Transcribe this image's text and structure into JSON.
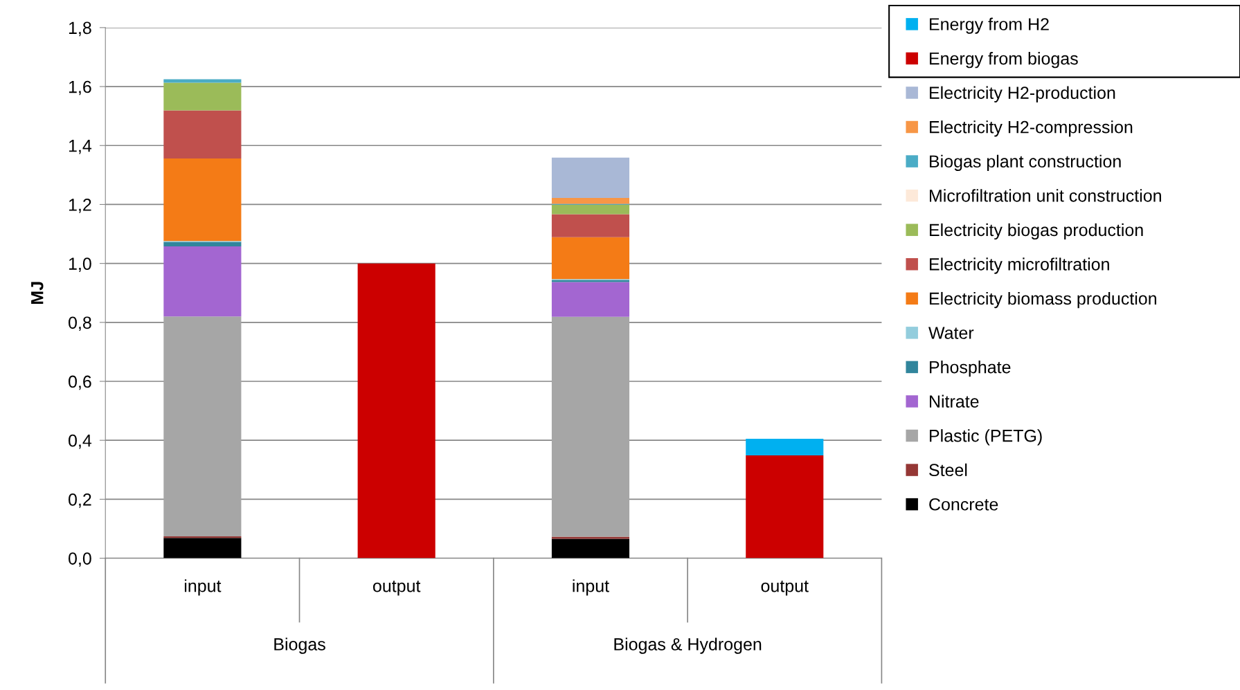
{
  "chart_data": {
    "type": "bar",
    "stacked": true,
    "ylabel": "MJ",
    "categories": [
      "input",
      "output",
      "input",
      "output"
    ],
    "series": [
      {
        "name": "Concrete",
        "color": "#000000",
        "values": [
          0.069,
          null,
          0.066,
          null
        ]
      },
      {
        "name": "Steel",
        "color": "#953735",
        "values": [
          0.005,
          null,
          0.007,
          null
        ]
      },
      {
        "name": "Plastic (PETG)",
        "color": "#a6a6a6",
        "values": [
          0.746,
          null,
          0.746,
          null
        ]
      },
      {
        "name": "Nitrate",
        "color": "#a366d1",
        "values": [
          0.238,
          null,
          0.118,
          null
        ]
      },
      {
        "name": "Phosphate",
        "color": "#31859c",
        "values": [
          0.015,
          null,
          0.007,
          null
        ]
      },
      {
        "name": "Water",
        "color": "#93cddd",
        "values": [
          0.003,
          null,
          0.003,
          null
        ]
      },
      {
        "name": "Electricity biomass production",
        "color": "#f47b16",
        "values": [
          0.28,
          null,
          0.142,
          null
        ]
      },
      {
        "name": "Electricity microfiltration",
        "color": "#c0504d",
        "values": [
          0.163,
          null,
          0.078,
          null
        ]
      },
      {
        "name": "Electricity biogas production",
        "color": "#9bbb59",
        "values": [
          0.094,
          null,
          0.032,
          null
        ]
      },
      {
        "name": "Microfiltration unit construction",
        "color": "#fde9d9",
        "values": [
          null,
          null,
          null,
          null
        ]
      },
      {
        "name": "Biogas plant construction",
        "color": "#4bacc6",
        "values": [
          0.012,
          null,
          0.003,
          null
        ]
      },
      {
        "name": "Electricity H2-compression",
        "color": "#f79646",
        "values": [
          null,
          null,
          0.02,
          null
        ]
      },
      {
        "name": "Electricity H2-production",
        "color": "#a9b8d6",
        "values": [
          null,
          null,
          0.137,
          null
        ]
      },
      {
        "name": "Energy from biogas",
        "color": "#cc0000",
        "values": [
          null,
          1.0,
          null,
          0.349
        ]
      },
      {
        "name": "Energy from H2",
        "color": "#00b0f0",
        "values": [
          null,
          null,
          null,
          0.056
        ]
      }
    ],
    "annotations": [
      "Biogas",
      "Biogas & Hydrogen"
    ],
    "ylim": [
      0,
      1.8
    ],
    "yticks": [
      {
        "value": 0,
        "label": "0,0"
      },
      {
        "value": 0.2,
        "label": "0,2"
      },
      {
        "value": 0.4,
        "label": "0,4"
      },
      {
        "value": 0.6,
        "label": "0,6"
      },
      {
        "value": 0.8,
        "label": "0,8"
      },
      {
        "value": 1.0,
        "label": "1,0"
      },
      {
        "value": 1.2,
        "label": "1,2"
      },
      {
        "value": 1.4,
        "label": "1,4"
      },
      {
        "value": 1.6,
        "label": "1,6"
      },
      {
        "value": 1.8,
        "label": "1,8"
      }
    ],
    "grid": "y",
    "legend": "right"
  }
}
